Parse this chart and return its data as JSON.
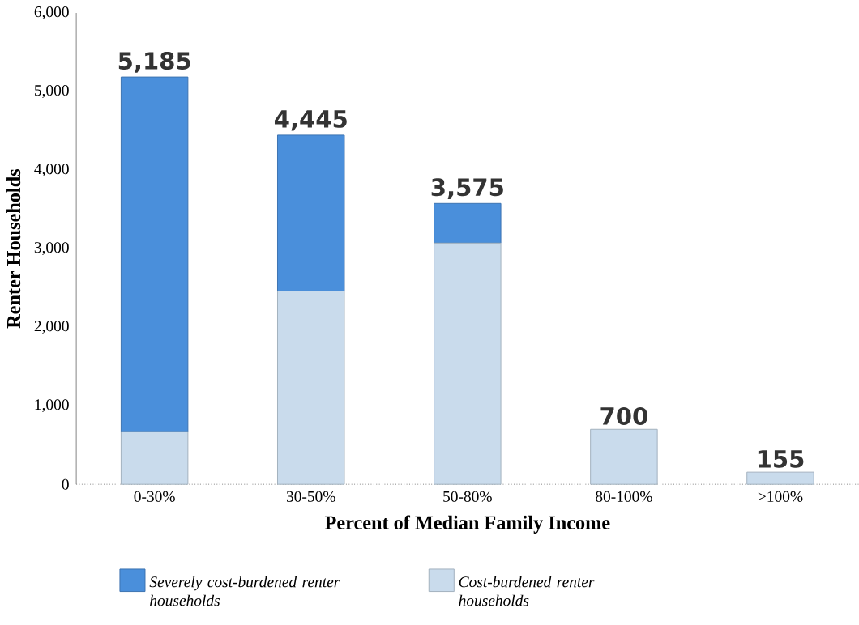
{
  "chart_data": {
    "type": "bar",
    "stacked": true,
    "xlabel": "Percent of Median Family Income",
    "ylabel": "Renter Households",
    "categories": [
      "0-30%",
      "30-50%",
      "50-80%",
      "80-100%",
      ">100%"
    ],
    "series": [
      {
        "name": "Cost-burdened renter households",
        "color": "#c9dbec",
        "values": [
          670,
          2460,
          3070,
          700,
          155
        ]
      },
      {
        "name": "Severely cost-burdened renter households",
        "color": "#4a8fdb",
        "values": [
          4515,
          1985,
          505,
          0,
          0
        ]
      }
    ],
    "totals": [
      "5,185",
      "4,445",
      "3,575",
      "700",
      "155"
    ],
    "ylim": [
      0,
      6000
    ],
    "yticks": [
      0,
      {
        "value": 1000,
        "label": "1,000"
      },
      {
        "value": 2000,
        "label": "2,000"
      },
      {
        "value": 3000,
        "label": "3,000"
      },
      {
        "value": 4000,
        "label": "4,000"
      },
      {
        "value": 5000,
        "label": "5,000"
      },
      {
        "value": 6000,
        "label": "6,000"
      }
    ],
    "legend": "bottom",
    "grid": false
  }
}
